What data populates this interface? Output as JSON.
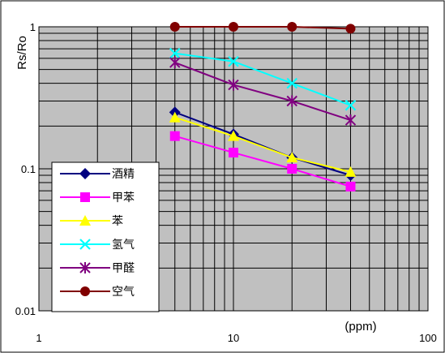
{
  "chart_data": {
    "type": "line",
    "title": "",
    "xlabel": "(ppm)",
    "ylabel": "Rs/Ro",
    "x_scale": "log",
    "y_scale": "log",
    "xlim": [
      1,
      100
    ],
    "ylim": [
      0.01,
      1
    ],
    "x_tick_labels": [
      "1",
      "10",
      "100"
    ],
    "y_tick_labels": [
      "0.01",
      "0.1",
      "1"
    ],
    "grid": true,
    "plot_background": "#c0c0c0",
    "legend_position": "bottom-left",
    "x": [
      5,
      10,
      20,
      40
    ],
    "series": [
      {
        "name": "酒精",
        "values": [
          0.25,
          0.175,
          0.12,
          0.09
        ],
        "color": "#000080",
        "marker": "diamond"
      },
      {
        "name": "甲苯",
        "values": [
          0.17,
          0.13,
          0.1,
          0.075
        ],
        "color": "#ff00ff",
        "marker": "square"
      },
      {
        "name": "苯",
        "values": [
          0.23,
          0.17,
          0.12,
          0.095
        ],
        "color": "#ffff00",
        "marker": "triangle"
      },
      {
        "name": "氢气",
        "values": [
          0.65,
          0.57,
          0.4,
          0.28
        ],
        "color": "#00ffff",
        "marker": "x"
      },
      {
        "name": "甲醛",
        "values": [
          0.56,
          0.39,
          0.3,
          0.22
        ],
        "color": "#800080",
        "marker": "asterisk"
      },
      {
        "name": "空气",
        "values": [
          1.0,
          1.0,
          1.0,
          0.97
        ],
        "color": "#800000",
        "marker": "circle"
      }
    ]
  }
}
